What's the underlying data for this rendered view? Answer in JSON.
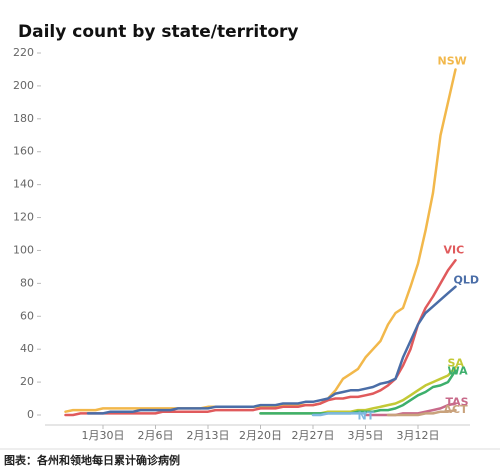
{
  "chart_data": {
    "type": "line",
    "title": "Daily count by state/territory",
    "caption": "图表：各州和领地每日累计确诊病例",
    "categories": [
      null,
      null,
      null,
      null,
      null,
      "1月30日",
      null,
      null,
      null,
      null,
      null,
      null,
      "2月6日",
      null,
      null,
      null,
      null,
      null,
      null,
      "2月13日",
      null,
      null,
      null,
      null,
      null,
      null,
      "2月20日",
      null,
      null,
      null,
      null,
      null,
      null,
      "2月27日",
      null,
      null,
      null,
      null,
      null,
      null,
      "3月5日",
      null,
      null,
      null,
      null,
      null,
      null,
      "3月12日",
      null,
      null,
      null,
      null,
      null
    ],
    "ylim": [
      0,
      220
    ],
    "yticks": [
      0,
      20,
      40,
      60,
      80,
      100,
      120,
      140,
      160,
      180,
      200,
      220
    ],
    "grid": false,
    "series": [
      {
        "name": "NSW",
        "color": "#f2b84b",
        "values": [
          2,
          3,
          3,
          3,
          3,
          4,
          4,
          4,
          4,
          4,
          4,
          4,
          4,
          4,
          4,
          4,
          4,
          4,
          4,
          5,
          5,
          5,
          5,
          5,
          5,
          5,
          5,
          5,
          5,
          6,
          6,
          6,
          6,
          6,
          7,
          10,
          15,
          22,
          25,
          28,
          35,
          40,
          45,
          55,
          62,
          65,
          78,
          92,
          112,
          135,
          170,
          190,
          210
        ]
      },
      {
        "name": "VIC",
        "color": "#e05a5c",
        "values": [
          0,
          0,
          1,
          1,
          1,
          1,
          1,
          1,
          1,
          1,
          1,
          1,
          1,
          2,
          2,
          2,
          2,
          2,
          2,
          2,
          3,
          3,
          3,
          3,
          3,
          3,
          4,
          4,
          4,
          5,
          5,
          5,
          6,
          6,
          7,
          9,
          10,
          10,
          11,
          11,
          12,
          13,
          15,
          18,
          22,
          30,
          40,
          55,
          65,
          72,
          80,
          88,
          94
        ]
      },
      {
        "name": "QLD",
        "color": "#4a6da7",
        "values": [
          null,
          null,
          null,
          1,
          1,
          1,
          2,
          2,
          2,
          2,
          3,
          3,
          3,
          3,
          3,
          4,
          4,
          4,
          4,
          4,
          5,
          5,
          5,
          5,
          5,
          5,
          6,
          6,
          6,
          7,
          7,
          7,
          8,
          8,
          9,
          10,
          13,
          14,
          15,
          15,
          16,
          17,
          19,
          20,
          22,
          35,
          45,
          55,
          62,
          66,
          70,
          74,
          78
        ]
      },
      {
        "name": "SA",
        "color": "#c3c935",
        "values": [
          null,
          null,
          null,
          null,
          null,
          null,
          null,
          null,
          null,
          null,
          null,
          null,
          null,
          null,
          null,
          null,
          null,
          null,
          null,
          null,
          null,
          null,
          null,
          null,
          null,
          null,
          1,
          1,
          1,
          1,
          1,
          1,
          1,
          1,
          1,
          2,
          2,
          2,
          2,
          3,
          3,
          4,
          5,
          6,
          7,
          9,
          12,
          15,
          18,
          20,
          22,
          24,
          29
        ]
      },
      {
        "name": "WA",
        "color": "#3daf6c",
        "values": [
          null,
          null,
          null,
          null,
          null,
          null,
          null,
          null,
          null,
          null,
          null,
          null,
          null,
          null,
          null,
          null,
          null,
          null,
          null,
          null,
          null,
          null,
          null,
          null,
          null,
          null,
          1,
          1,
          1,
          1,
          1,
          1,
          1,
          1,
          1,
          1,
          1,
          1,
          1,
          2,
          2,
          2,
          3,
          3,
          4,
          6,
          9,
          12,
          14,
          17,
          18,
          20,
          27
        ]
      },
      {
        "name": "TAS",
        "color": "#c86a8a",
        "values": [
          null,
          null,
          null,
          null,
          null,
          null,
          null,
          null,
          null,
          null,
          null,
          null,
          null,
          null,
          null,
          null,
          null,
          null,
          null,
          null,
          null,
          null,
          null,
          null,
          null,
          null,
          null,
          null,
          null,
          null,
          null,
          null,
          null,
          null,
          null,
          null,
          null,
          null,
          null,
          null,
          0,
          0,
          0,
          0,
          0,
          1,
          1,
          1,
          2,
          3,
          4,
          6,
          7
        ]
      },
      {
        "name": "ACT",
        "color": "#c9a27c",
        "values": [
          null,
          null,
          null,
          null,
          null,
          null,
          null,
          null,
          null,
          null,
          null,
          null,
          null,
          null,
          null,
          null,
          null,
          null,
          null,
          null,
          null,
          null,
          null,
          null,
          null,
          null,
          null,
          null,
          null,
          null,
          null,
          null,
          null,
          null,
          null,
          null,
          null,
          null,
          null,
          null,
          null,
          null,
          null,
          0,
          0,
          0,
          0,
          0,
          1,
          1,
          2,
          2,
          3
        ]
      },
      {
        "name": "NT",
        "color": "#7fb8e0",
        "values": [
          null,
          null,
          null,
          null,
          null,
          null,
          null,
          null,
          null,
          null,
          null,
          null,
          null,
          null,
          null,
          null,
          null,
          null,
          null,
          null,
          null,
          null,
          null,
          null,
          null,
          null,
          null,
          null,
          null,
          null,
          null,
          null,
          null,
          0,
          0,
          1,
          1,
          1,
          1,
          1,
          1,
          null,
          null,
          null,
          null,
          null,
          null,
          null,
          null,
          null,
          null,
          null,
          null
        ]
      }
    ]
  }
}
